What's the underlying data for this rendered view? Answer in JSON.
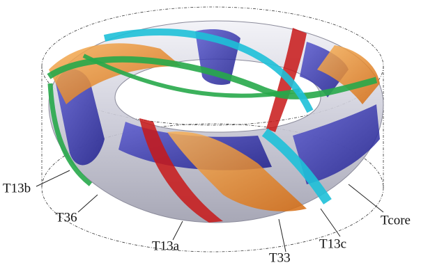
{
  "labels": [
    "T13b",
    "T36",
    "T13a",
    "T33",
    "T13c",
    "Tcore"
  ]
}
